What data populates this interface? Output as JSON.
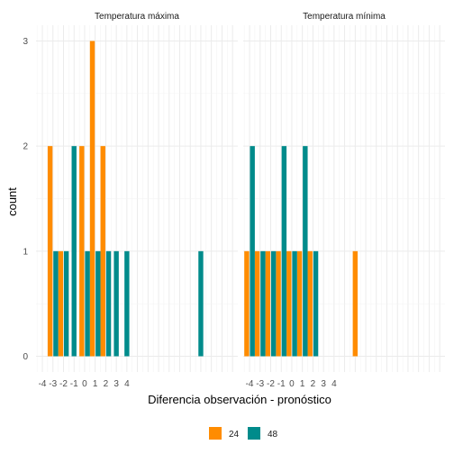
{
  "chart_data": {
    "type": "bar",
    "facet_by": "variable",
    "facets": [
      {
        "title": "Temperatura máxima",
        "series": [
          {
            "name": "24",
            "color": "#FF8C00",
            "x": [
              -3,
              -2,
              0,
              1,
              2
            ],
            "values": [
              2,
              1,
              2,
              3,
              2
            ]
          },
          {
            "name": "48",
            "color": "#008B8B",
            "x": [
              -3,
              -2,
              -1,
              0,
              1,
              2,
              3,
              4,
              11
            ],
            "values": [
              1,
              1,
              2,
              1,
              1,
              1,
              1,
              1,
              1
            ]
          }
        ]
      },
      {
        "title": "Temperatura mínima",
        "series": [
          {
            "name": "24",
            "color": "#FF8C00",
            "x": [
              -4,
              -3,
              -2,
              -1,
              0,
              1,
              2,
              6
            ],
            "values": [
              1,
              1,
              1,
              1,
              1,
              1,
              1,
              1
            ]
          },
          {
            "name": "48",
            "color": "#008B8B",
            "x": [
              -4,
              -3,
              -2,
              -1,
              0,
              1,
              2
            ],
            "values": [
              2,
              1,
              1,
              2,
              1,
              2,
              1
            ]
          }
        ]
      }
    ],
    "x_ticks": [
      "-4",
      "-3",
      "-2",
      "-1",
      "0",
      "1",
      "2",
      "3",
      "4"
    ],
    "x_tick_values": [
      -4,
      -3,
      -2,
      -1,
      0,
      1,
      2,
      3,
      4
    ],
    "xlim": [
      -4.6,
      14.5
    ],
    "y_ticks": [
      "0",
      "1",
      "2",
      "3"
    ],
    "ylim": [
      -0.15,
      3.15
    ],
    "xlabel": "Diferencia observación - pronóstico",
    "ylabel": "count",
    "legend": {
      "position": "bottom",
      "items": [
        "24",
        "48"
      ]
    },
    "grid": true
  }
}
